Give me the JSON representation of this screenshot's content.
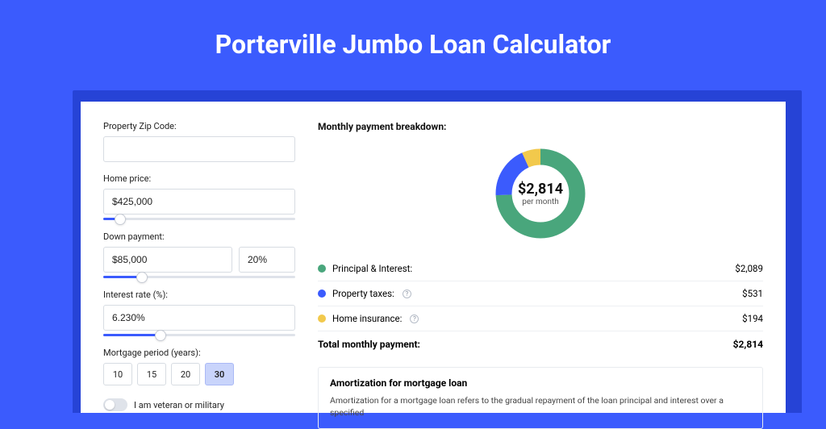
{
  "title": "Porterville Jumbo Loan Calculator",
  "colors": {
    "page_bg": "#3b5bfd",
    "shadow_bg": "#2643d6",
    "card_bg": "#ffffff",
    "accent": "#3b5bfd",
    "pi_color": "#49a67c",
    "taxes_color": "#3b5bfd",
    "insurance_color": "#f2c94c"
  },
  "left": {
    "zip": {
      "label": "Property Zip Code:",
      "value": ""
    },
    "home_price": {
      "label": "Home price:",
      "value": "$425,000",
      "slider_pct": 9
    },
    "down_payment": {
      "label": "Down payment:",
      "value": "$85,000",
      "pct_value": "20%",
      "slider_pct": 20
    },
    "interest_rate": {
      "label": "Interest rate (%):",
      "value": "6.230%",
      "slider_pct": 30
    },
    "mortgage_period": {
      "label": "Mortgage period (years):",
      "options": [
        "10",
        "15",
        "20",
        "30"
      ],
      "selected": "30"
    },
    "veteran": {
      "label": "I am veteran or military",
      "on": false
    }
  },
  "right": {
    "breakdown_title": "Monthly payment breakdown:",
    "donut": {
      "amount": "$2,814",
      "sub": "per month",
      "slices": [
        {
          "key": "pi",
          "value": 2089,
          "color": "#49a67c"
        },
        {
          "key": "taxes",
          "value": 531,
          "color": "#3b5bfd"
        },
        {
          "key": "insurance",
          "value": 194,
          "color": "#f2c94c"
        }
      ],
      "stroke_width": 18
    },
    "lines": [
      {
        "label": "Principal & Interest:",
        "value": "$2,089",
        "color": "#49a67c",
        "info": false
      },
      {
        "label": "Property taxes:",
        "value": "$531",
        "color": "#3b5bfd",
        "info": true
      },
      {
        "label": "Home insurance:",
        "value": "$194",
        "color": "#f2c94c",
        "info": true
      }
    ],
    "total": {
      "label": "Total monthly payment:",
      "value": "$2,814"
    },
    "amort": {
      "title": "Amortization for mortgage loan",
      "text": "Amortization for a mortgage loan refers to the gradual repayment of the loan principal and interest over a specified"
    }
  }
}
